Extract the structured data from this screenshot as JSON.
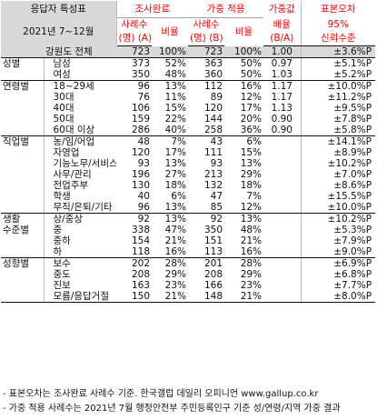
{
  "header": {
    "title_line1": "응답자 특성표",
    "title_line2": "2021년 7~12월",
    "group_survey": "조사완료",
    "group_weighted": "가중 적용",
    "weight_ratio_line1": "가중값",
    "weight_ratio_line2": "배율",
    "weight_ratio_line3": "(B/A)",
    "error_line1": "표본오차",
    "error_line2": "95%",
    "error_line3": "신뢰수준",
    "cases_a_line1": "사례수",
    "cases_a_line2": "(명) (A)",
    "ratio_a": "비율",
    "cases_b_line1": "사례수",
    "cases_b_line2": "(명) (B)",
    "ratio_b": "비율"
  },
  "total": {
    "label": "강원도 전체",
    "a": "723",
    "ap": "100%",
    "b": "723",
    "bp": "100%",
    "w": "1.00",
    "e": "±3.6%P"
  },
  "sections": [
    {
      "name_line1": "성별",
      "name_line2": "",
      "rows": [
        {
          "label": "남성",
          "a": "373",
          "ap": "52%",
          "b": "363",
          "bp": "50%",
          "w": "0.97",
          "e": "±5.1%P"
        },
        {
          "label": "여성",
          "a": "350",
          "ap": "48%",
          "b": "360",
          "bp": "50%",
          "w": "1.03",
          "e": "±5.2%P"
        }
      ]
    },
    {
      "name_line1": "연령별",
      "name_line2": "",
      "rows": [
        {
          "label": "18~29세",
          "a": "96",
          "ap": "13%",
          "b": "112",
          "bp": "16%",
          "w": "1.17",
          "e": "±10.0%P"
        },
        {
          "label": "30대",
          "a": "76",
          "ap": "11%",
          "b": "89",
          "bp": "12%",
          "w": "1.17",
          "e": "±11.2%P"
        },
        {
          "label": "40대",
          "a": "106",
          "ap": "15%",
          "b": "120",
          "bp": "17%",
          "w": "1.13",
          "e": "±9.5%P"
        },
        {
          "label": "50대",
          "a": "159",
          "ap": "22%",
          "b": "144",
          "bp": "20%",
          "w": "0.90",
          "e": "±7.8%P"
        },
        {
          "label": "60대 이상",
          "a": "286",
          "ap": "40%",
          "b": "258",
          "bp": "36%",
          "w": "0.90",
          "e": "±5.8%P"
        }
      ]
    },
    {
      "name_line1": "직업별",
      "name_line2": "",
      "rows": [
        {
          "label": "농/임/어업",
          "a": "48",
          "ap": "7%",
          "b": "43",
          "bp": "6%",
          "w": "",
          "e": "±14.1%P"
        },
        {
          "label": "자영업",
          "a": "120",
          "ap": "17%",
          "b": "111",
          "bp": "15%",
          "w": "",
          "e": "±8.9%P"
        },
        {
          "label": "기능노무/서비스",
          "a": "93",
          "ap": "13%",
          "b": "93",
          "bp": "13%",
          "w": "",
          "e": "±10.2%P"
        },
        {
          "label": "사무/관리",
          "a": "196",
          "ap": "27%",
          "b": "213",
          "bp": "29%",
          "w": "",
          "e": "±7.0%P"
        },
        {
          "label": "전업주부",
          "a": "130",
          "ap": "18%",
          "b": "132",
          "bp": "18%",
          "w": "",
          "e": "±8.6%P"
        },
        {
          "label": "학생",
          "a": "40",
          "ap": "6%",
          "b": "47",
          "bp": "7%",
          "w": "",
          "e": "±15.5%P"
        },
        {
          "label": "무직/은퇴/기타",
          "a": "96",
          "ap": "13%",
          "b": "85",
          "bp": "12%",
          "w": "",
          "e": "±10.0%P"
        }
      ]
    },
    {
      "name_line1": "생활",
      "name_line2": "수준별",
      "rows": [
        {
          "label": "상/중상",
          "a": "92",
          "ap": "13%",
          "b": "92",
          "bp": "13%",
          "w": "",
          "e": "±10.2%P"
        },
        {
          "label": "중",
          "a": "338",
          "ap": "47%",
          "b": "350",
          "bp": "48%",
          "w": "",
          "e": "±5.3%P"
        },
        {
          "label": "중하",
          "a": "154",
          "ap": "21%",
          "b": "151",
          "bp": "21%",
          "w": "",
          "e": "±7.9%P"
        },
        {
          "label": "하",
          "a": "118",
          "ap": "16%",
          "b": "113",
          "bp": "16%",
          "w": "",
          "e": "±9.0%P"
        }
      ]
    },
    {
      "name_line1": "성향별",
      "name_line2": "",
      "rows": [
        {
          "label": "보수",
          "a": "202",
          "ap": "28%",
          "b": "201",
          "bp": "28%",
          "w": "",
          "e": "±6.9%P"
        },
        {
          "label": "중도",
          "a": "208",
          "ap": "29%",
          "b": "208",
          "bp": "29%",
          "w": "",
          "e": "±6.8%P"
        },
        {
          "label": "진보",
          "a": "163",
          "ap": "23%",
          "b": "166",
          "bp": "23%",
          "w": "",
          "e": "±7.7%P"
        },
        {
          "label": "모름/응답거절",
          "a": "150",
          "ap": "21%",
          "b": "148",
          "bp": "21%",
          "w": "",
          "e": "±8.0%P"
        }
      ]
    }
  ],
  "notes": [
    "- 표본오차는 조사완료 사례수 기준. 한국갤럽 데일리 오피니언 www.gallup.co.kr",
    "- 가중 적용 사례수는 2021년 7월 행정안전부 주민등록인구 기준 성/연령/지역 가중 결과"
  ]
}
